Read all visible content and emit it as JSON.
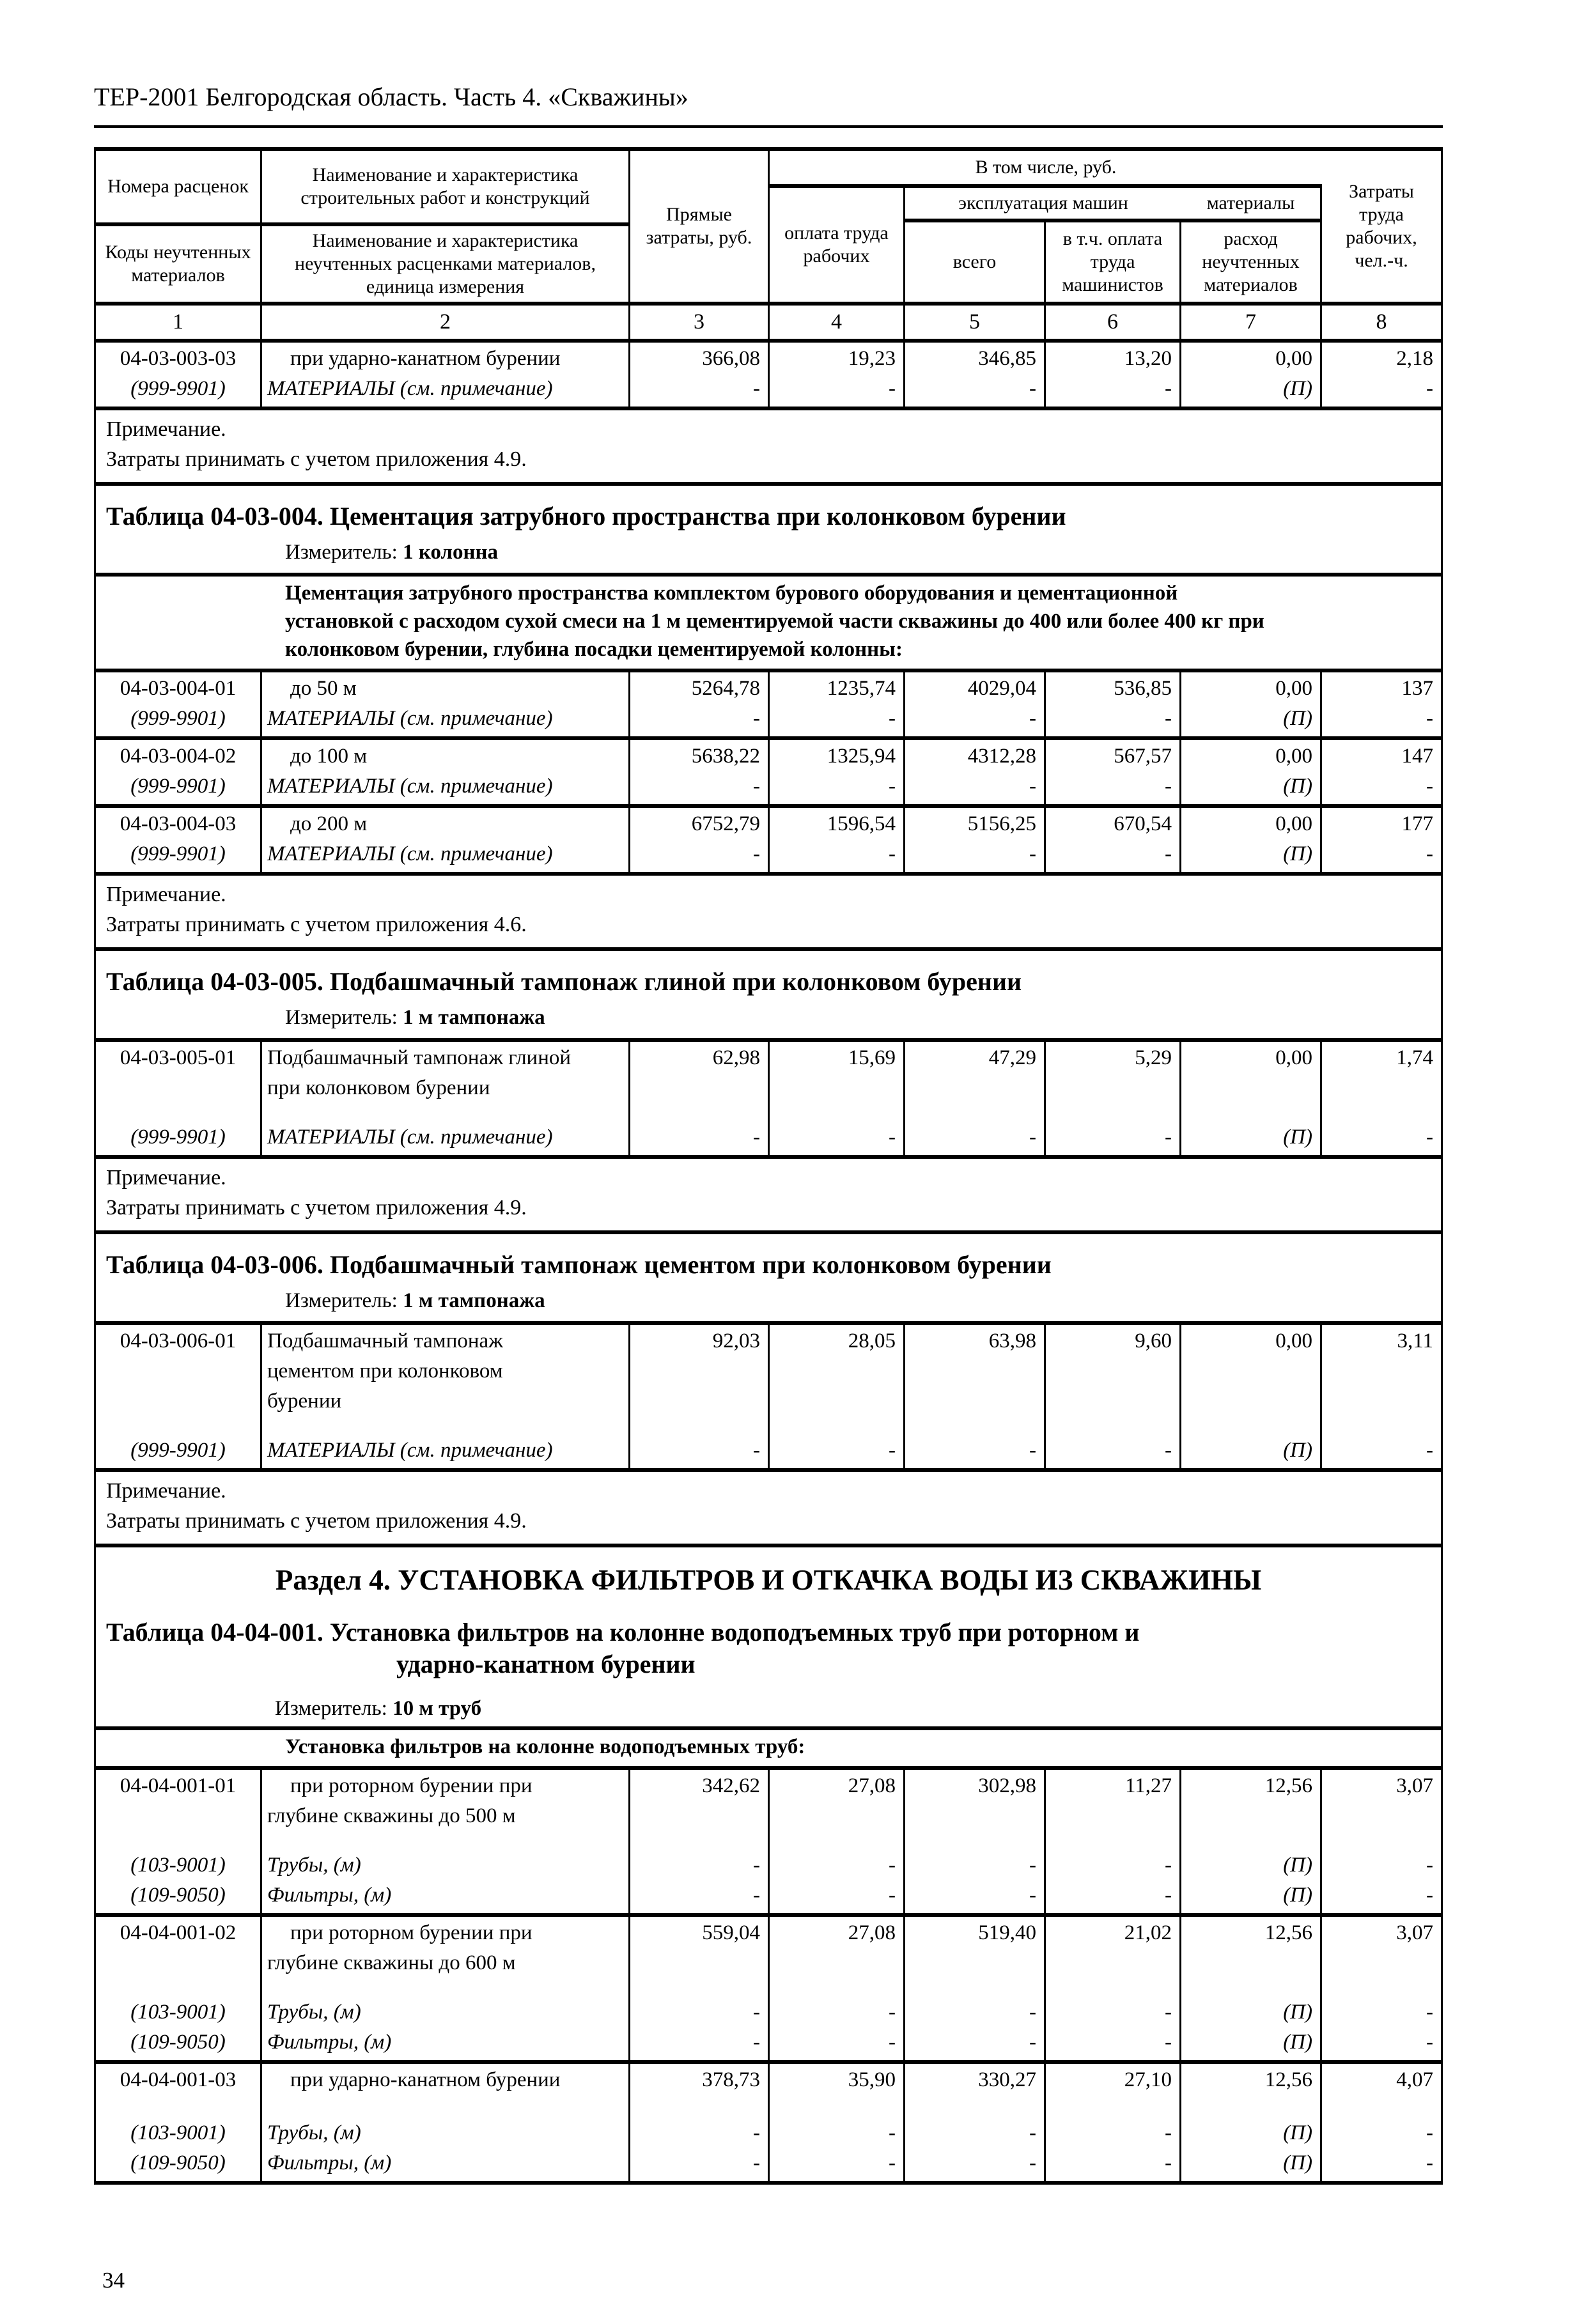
{
  "page": {
    "header_title": "ТЕР-2001 Белгородская область. Часть 4. «Скважины»",
    "page_number": "34"
  },
  "table_header": {
    "col1_top": "Номера расценок",
    "col1_bottom": "Коды неучтенных материалов",
    "col2_top": "Наименование и характеристика строительных работ и конструкций",
    "col2_bottom": "Наименование и характеристика неучтенных расценками материалов, единица измерения",
    "col3": "Прямые затраты, руб.",
    "group_incl": "В том числе, руб.",
    "col4": "оплата труда рабочих",
    "group_mach": "эксплуатация машин",
    "col5": "всего",
    "col6": "в т.ч. оплата труда машинистов",
    "group_mat": "материалы",
    "col7": "расход неучтенных материалов",
    "col8": "Затраты труда рабочих, чел.-ч.",
    "numbers": [
      "1",
      "2",
      "3",
      "4",
      "5",
      "6",
      "7",
      "8"
    ]
  },
  "sections": [
    {
      "type": "row",
      "code": "04-03-003-03",
      "indent": true,
      "name_lines": [
        "при ударно-канатном бурении"
      ],
      "values": [
        "366,08",
        "19,23",
        "346,85",
        "13,20",
        "0,00",
        "2,18"
      ],
      "materials": [
        {
          "code": "(999-9901)",
          "name": "МАТЕРИАЛЫ (см. примечание)",
          "cells": [
            "-",
            "-",
            "-",
            "-",
            "(П)",
            "-"
          ]
        }
      ]
    },
    {
      "type": "note",
      "lines": [
        "Примечание.",
        "Затраты принимать с учетом приложения 4.9."
      ]
    },
    {
      "type": "title",
      "title": "Таблица 04-03-004. Цементация затрубного пространства при колонковом бурении",
      "meter_label": "Измеритель:",
      "meter_value": "1 колонна"
    },
    {
      "type": "group",
      "lines": [
        "Цементация затрубного пространства комплектом бурового оборудования и цементационной",
        "установкой с расходом сухой смеси на 1 м цементируемой части скважины до 400 или более 400 кг при",
        "колонковом бурении, глубина посадки цементируемой колонны:"
      ]
    },
    {
      "type": "row",
      "code": "04-03-004-01",
      "indent": true,
      "name_lines": [
        "до 50 м"
      ],
      "values": [
        "5264,78",
        "1235,74",
        "4029,04",
        "536,85",
        "0,00",
        "137"
      ],
      "materials": [
        {
          "code": "(999-9901)",
          "name": "МАТЕРИАЛЫ (см. примечание)",
          "cells": [
            "-",
            "-",
            "-",
            "-",
            "(П)",
            "-"
          ]
        }
      ]
    },
    {
      "type": "row",
      "code": "04-03-004-02",
      "indent": true,
      "name_lines": [
        "до 100 м"
      ],
      "values": [
        "5638,22",
        "1325,94",
        "4312,28",
        "567,57",
        "0,00",
        "147"
      ],
      "materials": [
        {
          "code": "(999-9901)",
          "name": "МАТЕРИАЛЫ (см. примечание)",
          "cells": [
            "-",
            "-",
            "-",
            "-",
            "(П)",
            "-"
          ]
        }
      ]
    },
    {
      "type": "row",
      "code": "04-03-004-03",
      "indent": true,
      "name_lines": [
        "до 200 м"
      ],
      "values": [
        "6752,79",
        "1596,54",
        "5156,25",
        "670,54",
        "0,00",
        "177"
      ],
      "materials": [
        {
          "code": "(999-9901)",
          "name": "МАТЕРИАЛЫ (см. примечание)",
          "cells": [
            "-",
            "-",
            "-",
            "-",
            "(П)",
            "-"
          ]
        }
      ]
    },
    {
      "type": "note",
      "lines": [
        "Примечание.",
        "Затраты принимать с учетом приложения 4.6."
      ]
    },
    {
      "type": "title",
      "title": "Таблица 04-03-005. Подбашмачный тампонаж глиной при колонковом бурении",
      "meter_label": "Измеритель:",
      "meter_value": "1 м тампонажа"
    },
    {
      "type": "row",
      "code": "04-03-005-01",
      "indent": false,
      "name_lines": [
        "Подбашмачный тампонаж глиной",
        "при колонковом бурении"
      ],
      "values": [
        "62,98",
        "15,69",
        "47,29",
        "5,29",
        "0,00",
        "1,74"
      ],
      "materials": [
        {
          "code": "(999-9901)",
          "name": "МАТЕРИАЛЫ (см. примечание)",
          "cells": [
            "-",
            "-",
            "-",
            "-",
            "(П)",
            "-"
          ]
        }
      ]
    },
    {
      "type": "note",
      "lines": [
        "Примечание.",
        "Затраты принимать с учетом приложения 4.9."
      ]
    },
    {
      "type": "title",
      "title": "Таблица 04-03-006. Подбашмачный тампонаж цементом при колонковом бурении",
      "meter_label": "Измеритель:",
      "meter_value": "1 м тампонажа"
    },
    {
      "type": "row",
      "code": "04-03-006-01",
      "indent": false,
      "name_lines": [
        "Подбашмачный тампонаж",
        "цементом при колонковом",
        "бурении"
      ],
      "values": [
        "92,03",
        "28,05",
        "63,98",
        "9,60",
        "0,00",
        "3,11"
      ],
      "materials": [
        {
          "code": "(999-9901)",
          "name": "МАТЕРИАЛЫ (см. примечание)",
          "cells": [
            "-",
            "-",
            "-",
            "-",
            "(П)",
            "-"
          ]
        }
      ]
    },
    {
      "type": "note",
      "lines": [
        "Примечание.",
        "Затраты принимать с учетом приложения 4.9."
      ]
    },
    {
      "type": "heading_title",
      "heading": "Раздел 4. УСТАНОВКА ФИЛЬТРОВ И ОТКАЧКА ВОДЫ ИЗ СКВАЖИНЫ",
      "title_lines": [
        "Таблица 04-04-001. Установка фильтров на колонне водоподъемных труб при роторном и",
        "ударно-канатном бурении"
      ],
      "meter_label": "Измеритель:",
      "meter_value": "10 м труб"
    },
    {
      "type": "group",
      "lines": [
        "Установка фильтров на колонне водоподъемных труб:"
      ]
    },
    {
      "type": "row",
      "code": "04-04-001-01",
      "indent": true,
      "name_lines": [
        "при роторном бурении при",
        "глубине скважины до 500 м"
      ],
      "values": [
        "342,62",
        "27,08",
        "302,98",
        "11,27",
        "12,56",
        "3,07"
      ],
      "materials": [
        {
          "code": "(103-9001)",
          "name": "Трубы, (м)",
          "cells": [
            "-",
            "-",
            "-",
            "-",
            "(П)",
            "-"
          ]
        },
        {
          "code": "(109-9050)",
          "name": "Фильтры, (м)",
          "cells": [
            "-",
            "-",
            "-",
            "-",
            "(П)",
            "-"
          ]
        }
      ]
    },
    {
      "type": "row",
      "code": "04-04-001-02",
      "indent": true,
      "name_lines": [
        "при роторном бурении при",
        "глубине скважины до 600 м"
      ],
      "values": [
        "559,04",
        "27,08",
        "519,40",
        "21,02",
        "12,56",
        "3,07"
      ],
      "materials": [
        {
          "code": "(103-9001)",
          "name": "Трубы, (м)",
          "cells": [
            "-",
            "-",
            "-",
            "-",
            "(П)",
            "-"
          ]
        },
        {
          "code": "(109-9050)",
          "name": "Фильтры, (м)",
          "cells": [
            "-",
            "-",
            "-",
            "-",
            "(П)",
            "-"
          ]
        }
      ]
    },
    {
      "type": "row",
      "code": "04-04-001-03",
      "indent": true,
      "name_lines": [
        "при ударно-канатном бурении"
      ],
      "values": [
        "378,73",
        "35,90",
        "330,27",
        "27,10",
        "12,56",
        "4,07"
      ],
      "materials": [
        {
          "code": "(103-9001)",
          "name": "Трубы, (м)",
          "cells": [
            "-",
            "-",
            "-",
            "-",
            "(П)",
            "-"
          ]
        },
        {
          "code": "(109-9050)",
          "name": "Фильтры, (м)",
          "cells": [
            "-",
            "-",
            "-",
            "-",
            "(П)",
            "-"
          ]
        }
      ]
    }
  ]
}
